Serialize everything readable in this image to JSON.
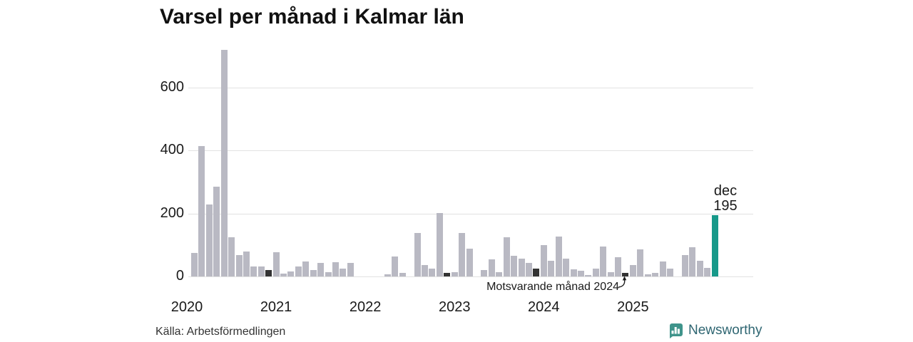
{
  "title": "Varsel per månad i Kalmar län",
  "source": "Källa: Arbetsförmedlingen",
  "branding": {
    "name": "Newsworthy"
  },
  "colors": {
    "bar": "#b9b9c3",
    "highlight_dark": "#333333",
    "highlight_teal": "#17998a",
    "grid": "#e2e2e2",
    "text": "#1a1a1a",
    "brand_icon": "#3f948b",
    "brand_text": "#2f6672"
  },
  "chart_data": {
    "type": "bar",
    "title": "Varsel per månad i Kalmar län",
    "xlabel": "",
    "ylabel": "",
    "ylim": [
      0,
      730
    ],
    "yticks": [
      0,
      200,
      400,
      600
    ],
    "grid": "horizontal",
    "year_labels": [
      "2020",
      "2021",
      "2022",
      "2023",
      "2024",
      "2025"
    ],
    "last_point_label": {
      "line1": "dec",
      "line2": "195"
    },
    "annotation": {
      "text": "Motsvarande månad 2024",
      "points_to": "2024-12"
    },
    "highlight_dark_months": [
      "2020-12",
      "2022-12",
      "2023-12",
      "2024-12"
    ],
    "highlight_teal_month": "2025-12",
    "series": [
      {
        "name": "Varsel per månad",
        "months": [
          {
            "date": "2020-01",
            "value": 0
          },
          {
            "date": "2020-02",
            "value": 75
          },
          {
            "date": "2020-03",
            "value": 415
          },
          {
            "date": "2020-04",
            "value": 229
          },
          {
            "date": "2020-05",
            "value": 285
          },
          {
            "date": "2020-06",
            "value": 720
          },
          {
            "date": "2020-07",
            "value": 125
          },
          {
            "date": "2020-08",
            "value": 68
          },
          {
            "date": "2020-09",
            "value": 79
          },
          {
            "date": "2020-10",
            "value": 31
          },
          {
            "date": "2020-11",
            "value": 31
          },
          {
            "date": "2020-12",
            "value": 20
          },
          {
            "date": "2021-01",
            "value": 77
          },
          {
            "date": "2021-02",
            "value": 9
          },
          {
            "date": "2021-03",
            "value": 15
          },
          {
            "date": "2021-04",
            "value": 32
          },
          {
            "date": "2021-05",
            "value": 48
          },
          {
            "date": "2021-06",
            "value": 20
          },
          {
            "date": "2021-07",
            "value": 43
          },
          {
            "date": "2021-08",
            "value": 13
          },
          {
            "date": "2021-09",
            "value": 45
          },
          {
            "date": "2021-10",
            "value": 25
          },
          {
            "date": "2021-11",
            "value": 42
          },
          {
            "date": "2021-12",
            "value": 0
          },
          {
            "date": "2022-01",
            "value": 0
          },
          {
            "date": "2022-02",
            "value": 0
          },
          {
            "date": "2022-03",
            "value": 0
          },
          {
            "date": "2022-04",
            "value": 7
          },
          {
            "date": "2022-05",
            "value": 63
          },
          {
            "date": "2022-06",
            "value": 11
          },
          {
            "date": "2022-07",
            "value": 0
          },
          {
            "date": "2022-08",
            "value": 137
          },
          {
            "date": "2022-09",
            "value": 37
          },
          {
            "date": "2022-10",
            "value": 26
          },
          {
            "date": "2022-11",
            "value": 202
          },
          {
            "date": "2022-12",
            "value": 12
          },
          {
            "date": "2023-01",
            "value": 13
          },
          {
            "date": "2023-02",
            "value": 137
          },
          {
            "date": "2023-03",
            "value": 88
          },
          {
            "date": "2023-04",
            "value": 0
          },
          {
            "date": "2023-05",
            "value": 20
          },
          {
            "date": "2023-06",
            "value": 54
          },
          {
            "date": "2023-07",
            "value": 14
          },
          {
            "date": "2023-08",
            "value": 125
          },
          {
            "date": "2023-09",
            "value": 65
          },
          {
            "date": "2023-10",
            "value": 57
          },
          {
            "date": "2023-11",
            "value": 42
          },
          {
            "date": "2023-12",
            "value": 26
          },
          {
            "date": "2024-01",
            "value": 99
          },
          {
            "date": "2024-02",
            "value": 50
          },
          {
            "date": "2024-03",
            "value": 127
          },
          {
            "date": "2024-04",
            "value": 56
          },
          {
            "date": "2024-05",
            "value": 22
          },
          {
            "date": "2024-06",
            "value": 17
          },
          {
            "date": "2024-07",
            "value": 5
          },
          {
            "date": "2024-08",
            "value": 24
          },
          {
            "date": "2024-09",
            "value": 95
          },
          {
            "date": "2024-10",
            "value": 13
          },
          {
            "date": "2024-11",
            "value": 62
          },
          {
            "date": "2024-12",
            "value": 12
          },
          {
            "date": "2025-01",
            "value": 36
          },
          {
            "date": "2025-02",
            "value": 87
          },
          {
            "date": "2025-03",
            "value": 7
          },
          {
            "date": "2025-04",
            "value": 12
          },
          {
            "date": "2025-05",
            "value": 47
          },
          {
            "date": "2025-06",
            "value": 24
          },
          {
            "date": "2025-07",
            "value": 0
          },
          {
            "date": "2025-08",
            "value": 68
          },
          {
            "date": "2025-09",
            "value": 93
          },
          {
            "date": "2025-10",
            "value": 49
          },
          {
            "date": "2025-11",
            "value": 27
          },
          {
            "date": "2025-12",
            "value": 195
          }
        ]
      }
    ]
  }
}
